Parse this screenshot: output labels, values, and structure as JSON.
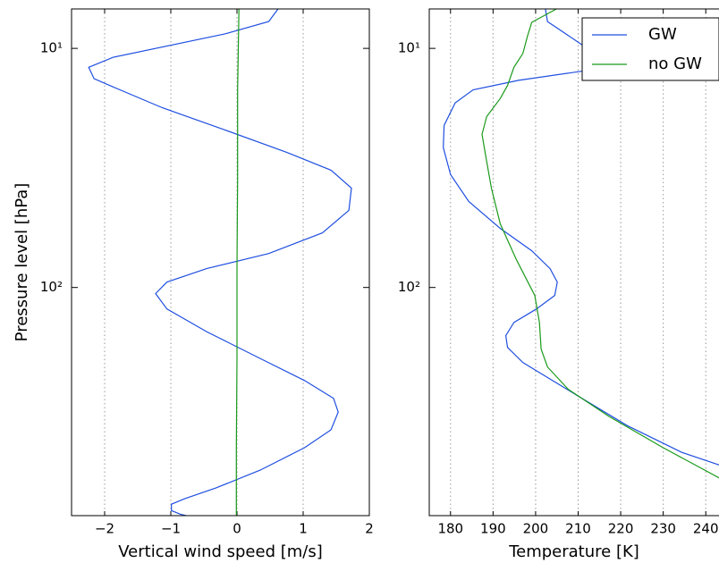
{
  "chart_data": [
    {
      "type": "line",
      "xlabel": "Vertical wind speed [m/s]",
      "ylabel": "Pressure level [hPa]",
      "xlim": [
        -2.5,
        2
      ],
      "xticks": [
        {
          "value": -2,
          "label": "−2"
        },
        {
          "value": -1,
          "label": "−1"
        },
        0,
        1,
        2
      ],
      "ylim": [
        900,
        6.84
      ],
      "yscale": "log",
      "yticks": [
        {
          "value": 10,
          "label": "10¹"
        },
        {
          "value": 100,
          "label": "10²"
        }
      ],
      "grid": true,
      "series": [
        {
          "color": "#1f4fe0",
          "values": [
            0.62,
            0.48,
            -0.19,
            -1.87,
            -2.24,
            -2.16,
            -1.87,
            -1.13,
            -0.19,
            0.75,
            1.42,
            1.73,
            1.69,
            1.29,
            0.48,
            -0.46,
            -1.06,
            -1.23,
            -1.06,
            -0.46,
            0.35,
            1.02,
            1.46,
            1.53,
            1.42,
            1.02,
            0.35,
            -0.32,
            -0.79,
            -0.99,
            -0.99,
            -0.86,
            -0.75
          ],
          "levels": [
            6.84,
            7.72,
            8.71,
            10.9,
            12.0,
            13.4,
            14.5,
            17.7,
            21.9,
            27.2,
            32.3,
            38.4,
            47.6,
            59.1,
            72.1,
            83.4,
            95.0,
            106,
            123,
            153,
            198,
            245,
            291,
            332,
            394,
            468,
            581,
            690,
            765,
            806,
            857,
            887,
            902
          ]
        },
        {
          "color": "#1a9a1a",
          "values": [
            0.03,
            0.01,
            0.01,
            0,
            0,
            -0.01,
            -0.01
          ],
          "levels": [
            6.84,
            14.9,
            35.2,
            83.4,
            198,
            468,
            902
          ]
        }
      ]
    },
    {
      "type": "line",
      "xlabel": "Temperature [K]",
      "xlim": [
        175,
        245
      ],
      "xticks": [
        180,
        190,
        200,
        210,
        220,
        230,
        240
      ],
      "ylim": [
        900,
        6.84
      ],
      "yscale": "log",
      "yticks": [
        {
          "value": 10,
          "label": "10¹"
        },
        {
          "value": 100,
          "label": "10²"
        }
      ],
      "grid": true,
      "legend": "upper right",
      "series": [
        {
          "name": "GW",
          "color": "#1f4fe0",
          "values": [
            202.3,
            202.8,
            210.9,
            217.2,
            196.0,
            185.3,
            181.1,
            178.5,
            178.3,
            180,
            184.3,
            191.7,
            199.1,
            203.4,
            205.1,
            204.5,
            200.2,
            194.9,
            193.0,
            193.4,
            197.0,
            202.3,
            210.9,
            221.5,
            234.3,
            243.6
          ],
          "levels": [
            6.84,
            7.72,
            9.66,
            12.0,
            13.6,
            14.9,
            16.9,
            21.0,
            26.0,
            33.7,
            43.7,
            56.6,
            70.2,
            83.4,
            95.0,
            108,
            123,
            140,
            159,
            178,
            206,
            235,
            291,
            378,
            489,
            556
          ]
        },
        {
          "name": "no GW",
          "color": "#1a9a1a",
          "values": [
            204.9,
            199.1,
            198.1,
            197.0,
            194.9,
            193.4,
            191.7,
            188.5,
            187.4,
            188.5,
            189.6,
            191.7,
            195.5,
            199.8,
            200.9,
            201.3,
            202.8,
            207.7,
            217.2,
            230.0,
            243.6
          ],
          "levels": [
            6.84,
            7.78,
            8.87,
            10.5,
            12.0,
            14.3,
            16.2,
            19.3,
            22.9,
            29.7,
            38.4,
            54.2,
            76.6,
            108,
            140,
            181,
            215,
            267,
            346,
            468,
            632
          ]
        }
      ]
    }
  ]
}
